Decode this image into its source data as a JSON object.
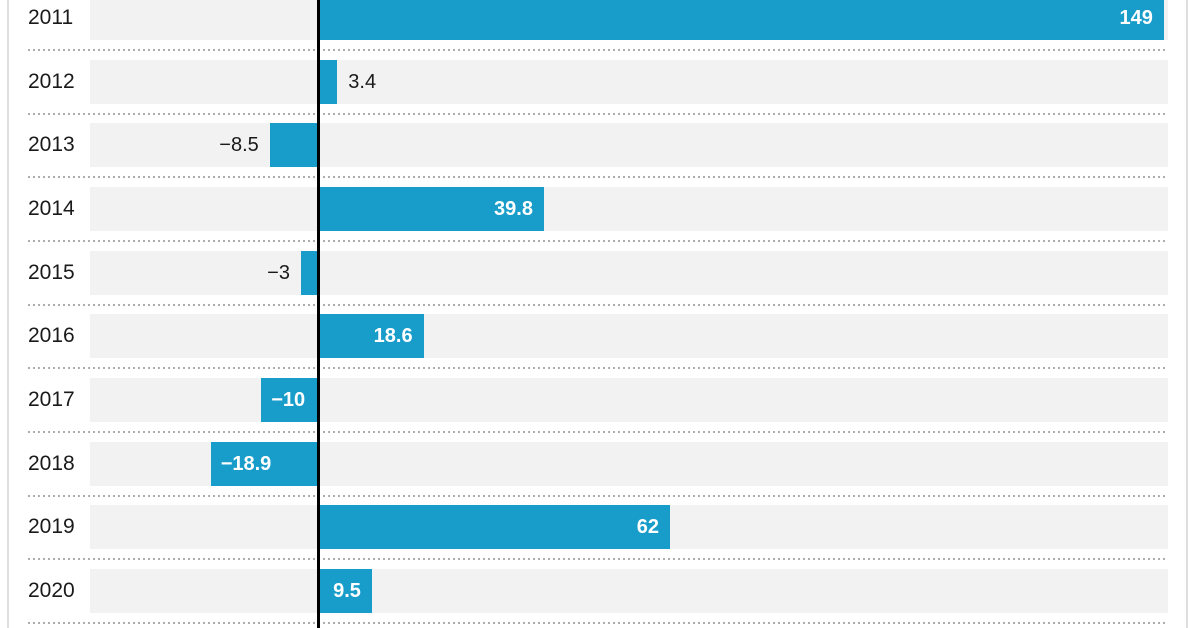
{
  "chart_data": {
    "type": "bar",
    "orientation": "horizontal",
    "title": "",
    "xlabel": "",
    "ylabel": "",
    "categories": [
      "2011",
      "2012",
      "2013",
      "2014",
      "2015",
      "2016",
      "2017",
      "2018",
      "2019",
      "2020"
    ],
    "values": [
      149,
      3.4,
      -8.5,
      39.8,
      -3,
      18.6,
      -10,
      -18.9,
      62,
      9.5
    ],
    "rows": [
      {
        "year": "2011",
        "value": 149,
        "label": "149"
      },
      {
        "year": "2012",
        "value": 3.4,
        "label": "3.4"
      },
      {
        "year": "2013",
        "value": -8.5,
        "label": "−8.5"
      },
      {
        "year": "2014",
        "value": 39.8,
        "label": "39.8"
      },
      {
        "year": "2015",
        "value": -3,
        "label": "−3"
      },
      {
        "year": "2016",
        "value": 18.6,
        "label": "18.6"
      },
      {
        "year": "2017",
        "value": -10,
        "label": "−10"
      },
      {
        "year": "2018",
        "value": -18.9,
        "label": "−18.9"
      },
      {
        "year": "2019",
        "value": 62,
        "label": "62"
      },
      {
        "year": "2020",
        "value": 9.5,
        "label": "9.5"
      }
    ],
    "xlim": [
      -40,
      150
    ],
    "grid": false,
    "legend": false,
    "zero_axis_line": true,
    "value_labels": "on bars; white inside wide bars, dark outside narrow bars",
    "style": {
      "bar_color": "#189dca",
      "track_color": "#f2f2f2",
      "zero_line_color": "#000000",
      "separator_color": "#adadad",
      "label_dark_color": "#1a1a1a",
      "label_light_color": "#ffffff"
    }
  }
}
